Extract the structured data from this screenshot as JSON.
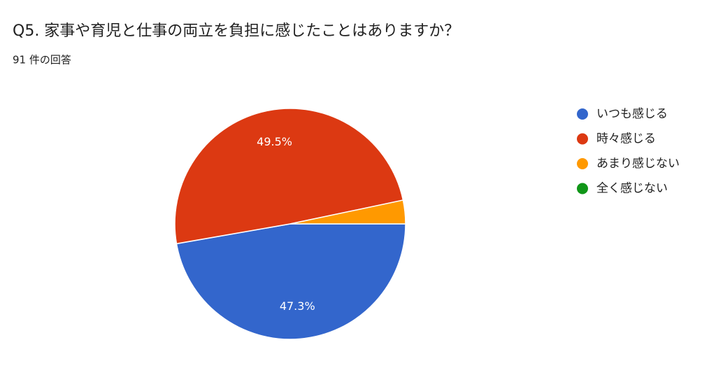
{
  "chart_data": {
    "type": "pie",
    "title": "Q5. 家事や育児と仕事の両立を負担に感じたことはありますか？",
    "subtitle": "91 件の回答",
    "categories": [
      "いつも感じる",
      "時々感じる",
      "あまり感じない",
      "全く感じない"
    ],
    "values": [
      47.3,
      49.5,
      3.3,
      0
    ],
    "value_labels": [
      "47.3%",
      "49.5%",
      null,
      null
    ],
    "colors": [
      "#3366cc",
      "#dc3912",
      "#ff9900",
      "#109618"
    ],
    "legend": "right"
  }
}
